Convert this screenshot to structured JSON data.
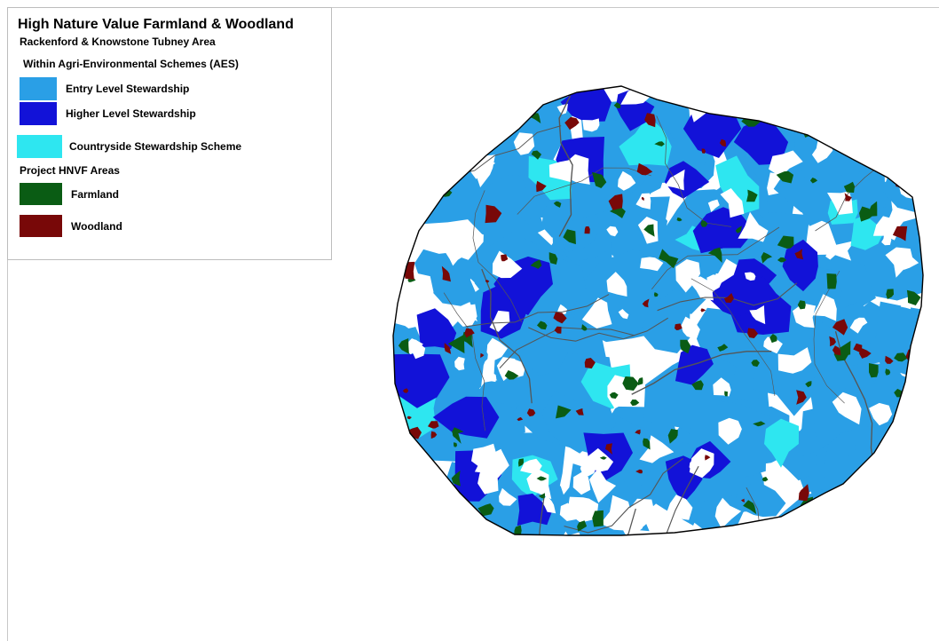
{
  "legend": {
    "title": "High Nature Value Farmland & Woodland",
    "subtitle": "Rackenford & Knowstone Tubney Area",
    "aes_heading": "Within Agri-Environmental Schemes (AES)",
    "hnvf_heading": "Project HNVF Areas",
    "items": [
      {
        "label": "Entry Level Stewardship",
        "color": "#2a9fe6"
      },
      {
        "label": "Higher Level Stewardship",
        "color": "#1212d8"
      },
      {
        "label": "Countryside Stewardship Scheme",
        "color": "#2ee6f0"
      },
      {
        "label": "Farmland",
        "color": "#0a5c14"
      },
      {
        "label": "Woodland",
        "color": "#780808"
      }
    ]
  },
  "map": {
    "background_color": "#ffffff",
    "boundary_color": "#000000",
    "road_color": "#555555"
  }
}
